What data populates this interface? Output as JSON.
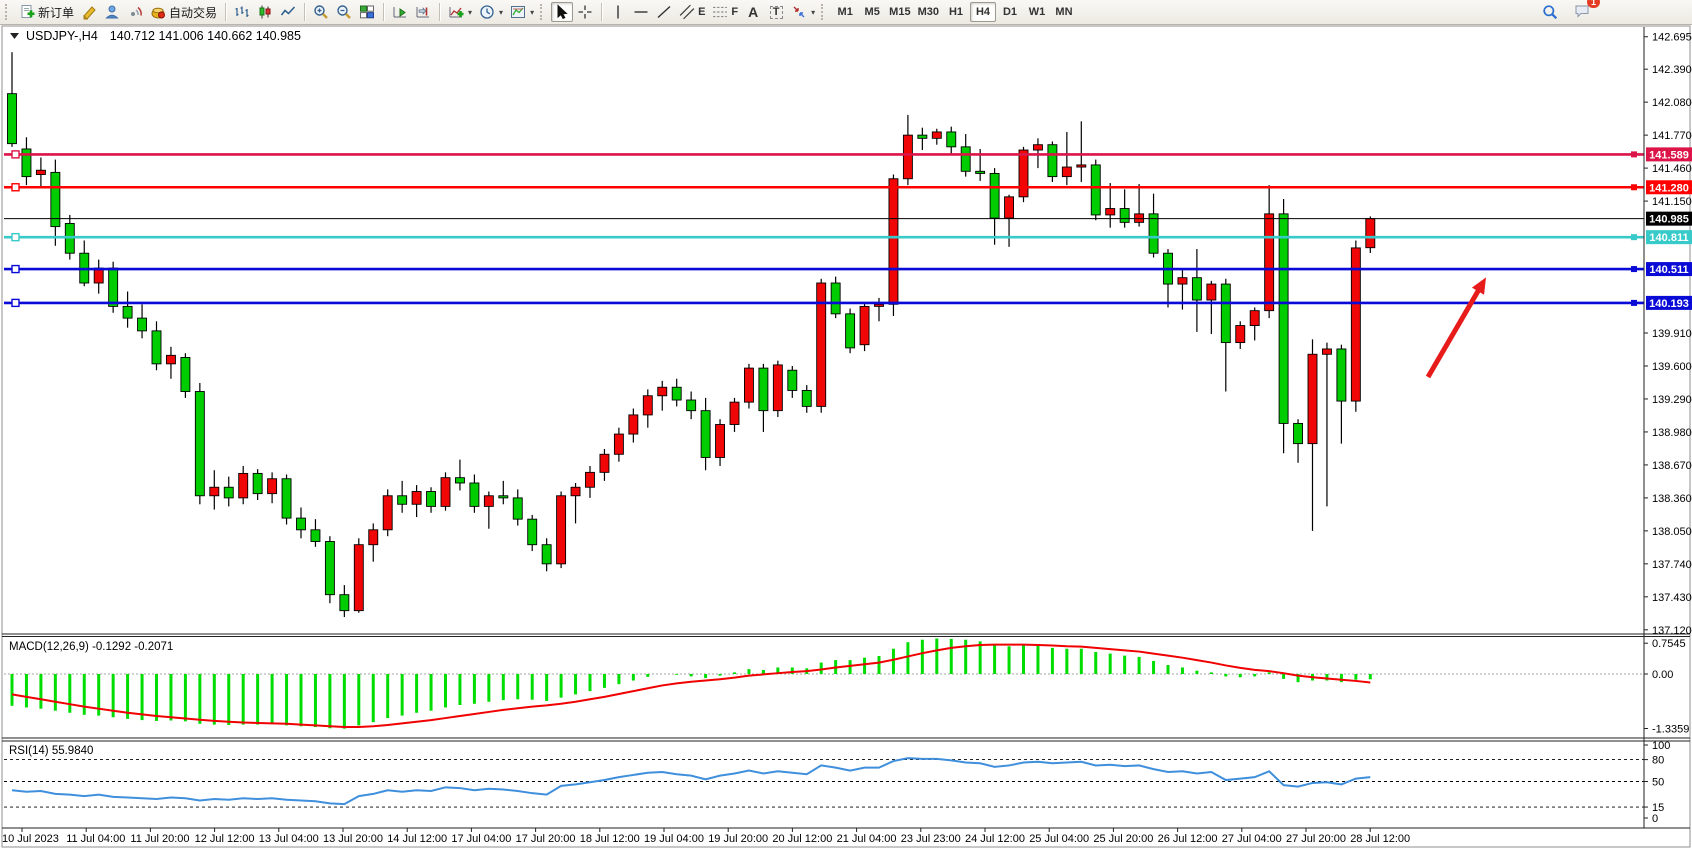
{
  "toolbar": {
    "new_order_label": "新订单",
    "autotrading_label": "自动交易",
    "timeframes": [
      "M1",
      "M5",
      "M15",
      "M30",
      "H1",
      "H4",
      "D1",
      "W1",
      "MN"
    ],
    "active_timeframe": "H4",
    "notification_count": "1",
    "glyphs": {
      "text_tool": "A",
      "label_tool": "T",
      "channel_tool": "E",
      "fibonacci_tool": "F"
    },
    "icons": [
      "new-order",
      "market",
      "community",
      "signals",
      "autotrading",
      "bar-chart",
      "candlestick",
      "line-chart",
      "zoom-in",
      "zoom-out",
      "tile-windows",
      "auto-scroll",
      "chart-shift",
      "indicators",
      "periods",
      "templates",
      "cursor",
      "crosshair",
      "vertical-line",
      "horizontal-line",
      "trendline",
      "equidistant-channel",
      "fibonacci",
      "text",
      "text-label",
      "arrows",
      "search",
      "chat"
    ]
  },
  "chart": {
    "title": "USDJPY-,H4",
    "ohlc": "140.712 141.006 140.662 140.985"
  },
  "chart_data": {
    "type": "candlestick",
    "symbol": "USDJPY-",
    "timeframe": "H4",
    "grid": false,
    "up_color": "#f00606",
    "down_color": "#00cd00",
    "current_bar": {
      "open": 140.712,
      "high": 141.006,
      "low": 140.662,
      "close": 140.985
    },
    "price_axis": {
      "max": 142.77,
      "min": 137.09,
      "ticks": [
        "142.695",
        "142.390",
        "142.080",
        "141.770",
        "141.460",
        "141.150",
        "139.910",
        "139.600",
        "139.290",
        "138.980",
        "138.670",
        "138.360",
        "138.050",
        "137.740",
        "137.430",
        "137.120"
      ]
    },
    "horizontal_lines": [
      {
        "label": "141.589",
        "color": "#dc1448"
      },
      {
        "label": "141.280",
        "color": "#ff0000"
      },
      {
        "label": "140.811",
        "color": "#38c9c9"
      },
      {
        "label": "140.511",
        "color": "#0a0ad6"
      },
      {
        "label": "140.193",
        "color": "#0a0ad6"
      }
    ],
    "current_price": {
      "label": "140.985",
      "color": "#000000"
    },
    "time_labels": [
      "10 Jul 2023",
      "11 Jul 04:00",
      "11 Jul 20:00",
      "12 Jul 12:00",
      "13 Jul 04:00",
      "13 Jul 20:00",
      "14 Jul 12:00",
      "17 Jul 04:00",
      "17 Jul 20:00",
      "18 Jul 12:00",
      "19 Jul 04:00",
      "19 Jul 20:00",
      "20 Jul 12:00",
      "21 Jul 04:00",
      "23 Jul 23:00",
      "24 Jul 12:00",
      "25 Jul 04:00",
      "25 Jul 20:00",
      "26 Jul 12:00",
      "27 Jul 04:00",
      "27 Jul 20:00",
      "28 Jul 12:00"
    ],
    "candles": [
      [
        142.16,
        142.55,
        141.66,
        141.69
      ],
      [
        141.64,
        141.75,
        141.3,
        141.38
      ],
      [
        141.4,
        141.56,
        141.27,
        141.44
      ],
      [
        141.42,
        141.54,
        140.73,
        140.91
      ],
      [
        140.94,
        141.02,
        140.6,
        140.66
      ],
      [
        140.66,
        140.78,
        140.35,
        140.38
      ],
      [
        140.38,
        140.6,
        140.28,
        140.52
      ],
      [
        140.52,
        140.58,
        140.1,
        140.16
      ],
      [
        140.16,
        140.3,
        139.96,
        140.05
      ],
      [
        140.05,
        140.18,
        139.86,
        139.93
      ],
      [
        139.93,
        140.02,
        139.56,
        139.62
      ],
      [
        139.62,
        139.78,
        139.48,
        139.7
      ],
      [
        139.68,
        139.72,
        139.3,
        139.36
      ],
      [
        139.36,
        139.44,
        138.3,
        138.38
      ],
      [
        138.38,
        138.62,
        138.25,
        138.46
      ],
      [
        138.46,
        138.56,
        138.28,
        138.36
      ],
      [
        138.36,
        138.66,
        138.3,
        138.59
      ],
      [
        138.59,
        138.63,
        138.34,
        138.4
      ],
      [
        138.4,
        138.6,
        138.31,
        138.54
      ],
      [
        138.54,
        138.58,
        138.11,
        138.17
      ],
      [
        138.17,
        138.27,
        137.98,
        138.06
      ],
      [
        138.06,
        138.16,
        137.9,
        137.95
      ],
      [
        137.95,
        138.0,
        137.37,
        137.45
      ],
      [
        137.45,
        137.54,
        137.24,
        137.3
      ],
      [
        137.3,
        137.98,
        137.28,
        137.92
      ],
      [
        137.92,
        138.12,
        137.76,
        138.06
      ],
      [
        138.06,
        138.44,
        138.0,
        138.38
      ],
      [
        138.38,
        138.52,
        138.22,
        138.3
      ],
      [
        138.3,
        138.48,
        138.18,
        138.42
      ],
      [
        138.42,
        138.46,
        138.22,
        138.28
      ],
      [
        138.28,
        138.6,
        138.24,
        138.55
      ],
      [
        138.55,
        138.72,
        138.43,
        138.5
      ],
      [
        138.5,
        138.58,
        138.22,
        138.28
      ],
      [
        138.28,
        138.42,
        138.07,
        138.38
      ],
      [
        138.38,
        138.52,
        138.3,
        138.36
      ],
      [
        138.36,
        138.44,
        138.1,
        138.16
      ],
      [
        138.16,
        138.2,
        137.86,
        137.92
      ],
      [
        137.92,
        137.98,
        137.67,
        137.74
      ],
      [
        137.74,
        138.42,
        137.7,
        138.38
      ],
      [
        138.38,
        138.5,
        138.12,
        138.46
      ],
      [
        138.46,
        138.66,
        138.36,
        138.6
      ],
      [
        138.6,
        138.82,
        138.52,
        138.77
      ],
      [
        138.77,
        139.02,
        138.7,
        138.96
      ],
      [
        138.96,
        139.2,
        138.88,
        139.14
      ],
      [
        139.14,
        139.38,
        139.02,
        139.32
      ],
      [
        139.32,
        139.46,
        139.18,
        139.4
      ],
      [
        139.4,
        139.48,
        139.22,
        139.28
      ],
      [
        139.28,
        139.36,
        139.1,
        139.18
      ],
      [
        139.18,
        139.3,
        138.62,
        138.74
      ],
      [
        138.74,
        139.1,
        138.66,
        139.05
      ],
      [
        139.05,
        139.3,
        138.98,
        139.26
      ],
      [
        139.26,
        139.62,
        139.2,
        139.58
      ],
      [
        139.58,
        139.62,
        138.98,
        139.18
      ],
      [
        139.18,
        139.65,
        139.12,
        139.61
      ],
      [
        139.56,
        139.6,
        139.3,
        139.37
      ],
      [
        139.37,
        139.42,
        139.16,
        139.22
      ],
      [
        139.22,
        140.42,
        139.16,
        140.38
      ],
      [
        140.38,
        140.44,
        140.05,
        140.09
      ],
      [
        140.09,
        140.14,
        139.72,
        139.77
      ],
      [
        139.8,
        140.2,
        139.74,
        140.16
      ],
      [
        140.16,
        140.24,
        140.02,
        140.18
      ],
      [
        140.18,
        141.4,
        140.07,
        141.36
      ],
      [
        141.36,
        141.96,
        141.3,
        141.77
      ],
      [
        141.77,
        141.84,
        141.63,
        141.74
      ],
      [
        141.74,
        141.83,
        141.68,
        141.8
      ],
      [
        141.8,
        141.85,
        141.58,
        141.66
      ],
      [
        141.66,
        141.78,
        141.38,
        141.43
      ],
      [
        141.43,
        141.64,
        141.34,
        141.41
      ],
      [
        141.41,
        141.46,
        140.74,
        140.99
      ],
      [
        140.99,
        141.21,
        140.72,
        141.19
      ],
      [
        141.19,
        141.66,
        141.14,
        141.63
      ],
      [
        141.63,
        141.74,
        141.46,
        141.68
      ],
      [
        141.68,
        141.71,
        141.33,
        141.38
      ],
      [
        141.38,
        141.8,
        141.3,
        141.47
      ],
      [
        141.47,
        141.9,
        141.33,
        141.49
      ],
      [
        141.49,
        141.54,
        140.97,
        141.02
      ],
      [
        141.02,
        141.32,
        140.9,
        141.08
      ],
      [
        141.08,
        141.26,
        140.9,
        140.95
      ],
      [
        140.95,
        141.31,
        140.91,
        141.03
      ],
      [
        141.03,
        141.22,
        140.62,
        140.66
      ],
      [
        140.66,
        140.7,
        140.15,
        140.37
      ],
      [
        140.37,
        140.5,
        140.13,
        140.43
      ],
      [
        140.43,
        140.7,
        139.92,
        140.22
      ],
      [
        140.22,
        140.4,
        139.9,
        140.37
      ],
      [
        140.37,
        140.42,
        139.36,
        139.82
      ],
      [
        139.82,
        140.02,
        139.76,
        139.98
      ],
      [
        139.98,
        140.15,
        139.84,
        140.12
      ],
      [
        140.12,
        141.3,
        140.05,
        141.03
      ],
      [
        141.03,
        141.17,
        138.78,
        139.06
      ],
      [
        139.06,
        139.1,
        138.69,
        138.87
      ],
      [
        138.87,
        139.85,
        138.05,
        139.71
      ],
      [
        139.71,
        139.82,
        138.28,
        139.76
      ],
      [
        139.76,
        139.8,
        138.87,
        139.27
      ],
      [
        139.27,
        140.78,
        139.17,
        140.71
      ],
      [
        140.712,
        141.006,
        140.662,
        140.985
      ]
    ],
    "macd": {
      "label": "MACD(12,26,9) -0.1292 -0.2071",
      "main_value": -0.1292,
      "signal_value": -0.2071,
      "axis": [
        "0.7545",
        "0.00",
        "-1.3359"
      ],
      "histogram": [
        -0.78,
        -0.82,
        -0.85,
        -0.9,
        -0.95,
        -1.0,
        -1.02,
        -1.06,
        -1.1,
        -1.13,
        -1.15,
        -1.14,
        -1.16,
        -1.22,
        -1.24,
        -1.25,
        -1.24,
        -1.24,
        -1.23,
        -1.26,
        -1.28,
        -1.3,
        -1.33,
        -1.34,
        -1.26,
        -1.18,
        -1.08,
        -1.02,
        -0.95,
        -0.9,
        -0.82,
        -0.76,
        -0.73,
        -0.68,
        -0.64,
        -0.62,
        -0.63,
        -0.66,
        -0.58,
        -0.5,
        -0.42,
        -0.34,
        -0.25,
        -0.16,
        -0.07,
        0.0,
        -0.02,
        -0.06,
        -0.1,
        -0.04,
        0.04,
        0.12,
        0.1,
        0.16,
        0.16,
        0.14,
        0.28,
        0.34,
        0.34,
        0.4,
        0.44,
        0.62,
        0.78,
        0.84,
        0.87,
        0.86,
        0.84,
        0.8,
        0.72,
        0.68,
        0.7,
        0.7,
        0.64,
        0.62,
        0.62,
        0.54,
        0.5,
        0.45,
        0.42,
        0.32,
        0.22,
        0.16,
        0.08,
        0.04,
        -0.06,
        -0.08,
        -0.06,
        0.04,
        -0.12,
        -0.2,
        -0.16,
        -0.16,
        -0.2,
        -0.14,
        -0.13
      ],
      "signal": [
        -0.5,
        -0.56,
        -0.62,
        -0.68,
        -0.74,
        -0.8,
        -0.85,
        -0.9,
        -0.95,
        -0.99,
        -1.03,
        -1.06,
        -1.09,
        -1.12,
        -1.15,
        -1.17,
        -1.19,
        -1.2,
        -1.21,
        -1.22,
        -1.24,
        -1.26,
        -1.28,
        -1.3,
        -1.3,
        -1.28,
        -1.25,
        -1.21,
        -1.17,
        -1.13,
        -1.08,
        -1.03,
        -0.98,
        -0.93,
        -0.88,
        -0.84,
        -0.8,
        -0.77,
        -0.73,
        -0.68,
        -0.62,
        -0.56,
        -0.49,
        -0.42,
        -0.35,
        -0.28,
        -0.23,
        -0.19,
        -0.16,
        -0.13,
        -0.09,
        -0.04,
        -0.01,
        0.02,
        0.05,
        0.07,
        0.11,
        0.16,
        0.2,
        0.24,
        0.28,
        0.35,
        0.43,
        0.51,
        0.58,
        0.64,
        0.68,
        0.71,
        0.72,
        0.72,
        0.72,
        0.71,
        0.7,
        0.68,
        0.67,
        0.64,
        0.61,
        0.58,
        0.55,
        0.5,
        0.45,
        0.4,
        0.34,
        0.28,
        0.21,
        0.15,
        0.1,
        0.07,
        0.02,
        -0.04,
        -0.08,
        -0.11,
        -0.14,
        -0.17,
        -0.2071
      ],
      "histogram_color": "#00dd00",
      "signal_color": "#f00000"
    },
    "rsi": {
      "label": "RSI(14) 55.9840",
      "value": 55.984,
      "levels": [
        80,
        50,
        15
      ],
      "axis": [
        "100",
        "80",
        "50",
        "15",
        "0"
      ],
      "line_color": "#3f8fdc",
      "values": [
        38,
        36,
        37,
        33,
        32,
        30,
        32,
        29,
        28,
        27,
        26,
        28,
        27,
        24,
        26,
        25,
        27,
        26,
        27,
        25,
        24,
        23,
        20,
        19,
        30,
        33,
        38,
        36,
        38,
        37,
        42,
        41,
        38,
        40,
        39,
        37,
        34,
        32,
        44,
        46,
        49,
        52,
        56,
        59,
        62,
        63,
        60,
        58,
        53,
        58,
        61,
        65,
        61,
        64,
        62,
        60,
        72,
        69,
        65,
        69,
        69,
        78,
        82,
        81,
        81,
        79,
        76,
        75,
        70,
        72,
        76,
        77,
        75,
        76,
        77,
        72,
        73,
        71,
        72,
        67,
        63,
        64,
        61,
        63,
        52,
        54,
        56,
        64,
        45,
        43,
        48,
        49,
        46,
        54,
        55.98
      ]
    },
    "annotation_arrow": {
      "from": [
        1428,
        376
      ],
      "to": [
        1481,
        285
      ],
      "color": "#e81b1b"
    }
  }
}
